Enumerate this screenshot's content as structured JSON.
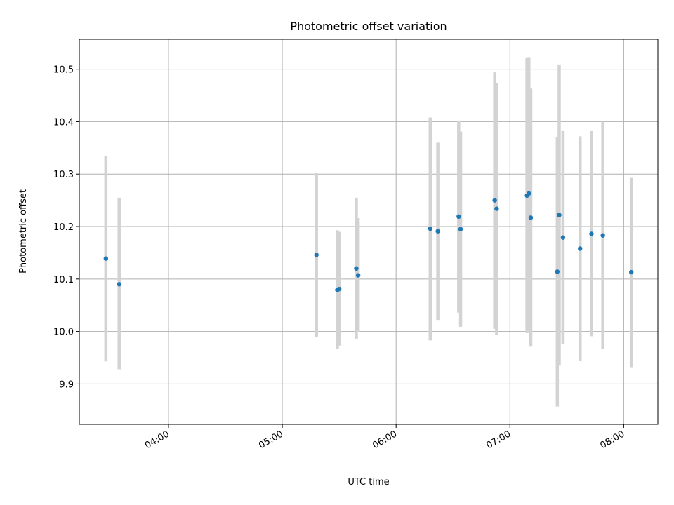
{
  "chart_data": {
    "type": "scatter",
    "title": "Photometric offset variation",
    "xlabel": "UTC time",
    "ylabel": "Photometric offset",
    "x_axis_type": "time",
    "xlim": [
      "03:13",
      "08:18"
    ],
    "ylim": [
      9.823,
      10.557
    ],
    "xticks": [
      "04:00",
      "05:00",
      "06:00",
      "07:00",
      "08:00"
    ],
    "yticks": [
      9.9,
      10.0,
      10.1,
      10.2,
      10.3,
      10.4,
      10.5
    ],
    "ytick_labels": [
      "9.9",
      "10.0",
      "10.1",
      "10.2",
      "10.3",
      "10.4",
      "10.5"
    ],
    "grid": true,
    "legend": "none",
    "point_color": "#1f77b4",
    "errorbar_color": "#d3d3d3",
    "points": [
      {
        "x": "03:27",
        "y": 10.139,
        "yerr_low": 9.943,
        "yerr_high": 10.335
      },
      {
        "x": "03:34",
        "y": 10.09,
        "yerr_low": 9.928,
        "yerr_high": 10.255
      },
      {
        "x": "05:18",
        "y": 10.146,
        "yerr_low": 9.99,
        "yerr_high": 10.302
      },
      {
        "x": "05:29",
        "y": 10.079,
        "yerr_low": 9.967,
        "yerr_high": 10.193
      },
      {
        "x": "05:30",
        "y": 10.081,
        "yerr_low": 9.973,
        "yerr_high": 10.19
      },
      {
        "x": "05:39",
        "y": 10.12,
        "yerr_low": 9.985,
        "yerr_high": 10.255
      },
      {
        "x": "05:40",
        "y": 10.107,
        "yerr_low": 9.999,
        "yerr_high": 10.216
      },
      {
        "x": "06:18",
        "y": 10.196,
        "yerr_low": 9.983,
        "yerr_high": 10.408
      },
      {
        "x": "06:22",
        "y": 10.191,
        "yerr_low": 10.022,
        "yerr_high": 10.36
      },
      {
        "x": "06:33",
        "y": 10.219,
        "yerr_low": 10.036,
        "yerr_high": 10.402
      },
      {
        "x": "06:34",
        "y": 10.195,
        "yerr_low": 10.009,
        "yerr_high": 10.381
      },
      {
        "x": "06:52",
        "y": 10.25,
        "yerr_low": 10.005,
        "yerr_high": 10.494
      },
      {
        "x": "06:53",
        "y": 10.234,
        "yerr_low": 9.993,
        "yerr_high": 10.474
      },
      {
        "x": "07:09",
        "y": 10.259,
        "yerr_low": 9.997,
        "yerr_high": 10.521
      },
      {
        "x": "07:10",
        "y": 10.263,
        "yerr_low": 10.003,
        "yerr_high": 10.523
      },
      {
        "x": "07:11",
        "y": 10.217,
        "yerr_low": 9.971,
        "yerr_high": 10.463
      },
      {
        "x": "07:25",
        "y": 10.114,
        "yerr_low": 9.857,
        "yerr_high": 10.371
      },
      {
        "x": "07:26",
        "y": 10.222,
        "yerr_low": 9.935,
        "yerr_high": 10.509
      },
      {
        "x": "07:28",
        "y": 10.179,
        "yerr_low": 9.977,
        "yerr_high": 10.382
      },
      {
        "x": "07:37",
        "y": 10.158,
        "yerr_low": 9.944,
        "yerr_high": 10.372
      },
      {
        "x": "07:43",
        "y": 10.186,
        "yerr_low": 9.991,
        "yerr_high": 10.382
      },
      {
        "x": "07:49",
        "y": 10.183,
        "yerr_low": 9.967,
        "yerr_high": 10.4
      },
      {
        "x": "08:04",
        "y": 10.113,
        "yerr_low": 9.932,
        "yerr_high": 10.293
      }
    ]
  }
}
